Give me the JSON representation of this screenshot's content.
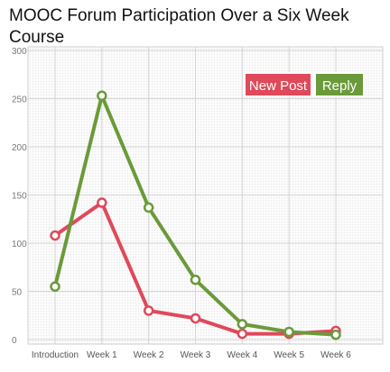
{
  "chart_data": {
    "type": "line",
    "title": "MOOC Forum Participation Over a Six Week Course",
    "xlabel": "",
    "ylabel": "",
    "categories": [
      "Introduction",
      "Week 1",
      "Week 2",
      "Week 3",
      "Week 4",
      "Week 5",
      "Week 6"
    ],
    "ylim": [
      0,
      300
    ],
    "yticks": [
      "300",
      "250",
      "200",
      "150",
      "100",
      "50",
      "0"
    ],
    "grid": true,
    "legend_position": "top-right",
    "series": [
      {
        "name": "New Post",
        "color": "#e0495a",
        "values": [
          108,
          142,
          30,
          22,
          6,
          6,
          9
        ]
      },
      {
        "name": "Reply",
        "color": "#6b9a3a",
        "values": [
          55,
          253,
          137,
          62,
          16,
          8,
          5
        ]
      }
    ]
  }
}
